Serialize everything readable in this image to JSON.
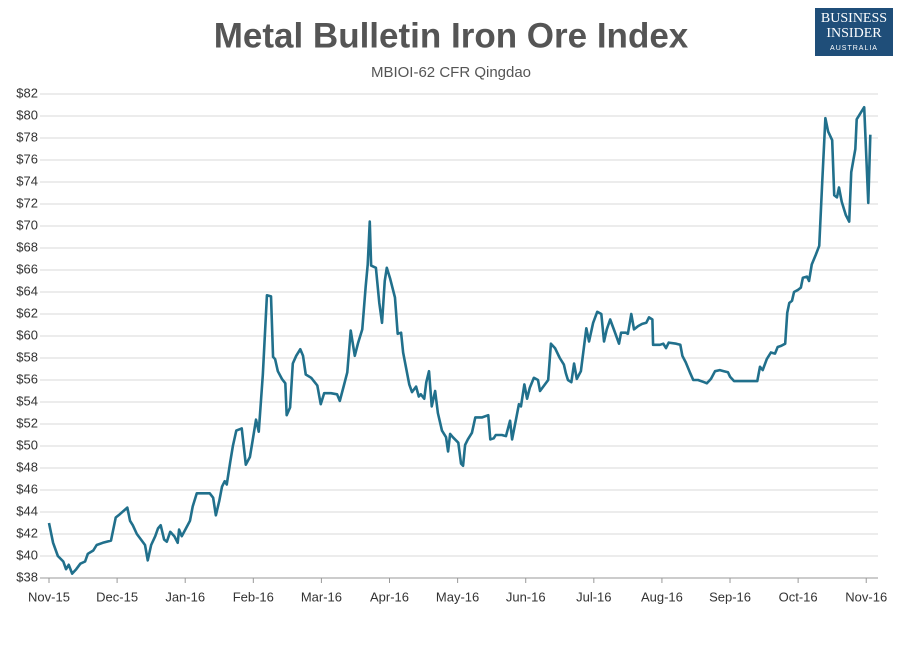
{
  "logo": {
    "line1": "BUSINESS",
    "line2": "INSIDER",
    "line3": "AUSTRALIA"
  },
  "chart_data": {
    "type": "line",
    "title": "Metal Bulletin Iron Ore Index",
    "subtitle": "MBIOI-62 CFR Qingdao",
    "color": "#21708c",
    "grid": true,
    "xlim": [
      0,
      12.07
    ],
    "xticks": [
      {
        "value": 0,
        "label": "Nov-15"
      },
      {
        "value": 1,
        "label": "Dec-15"
      },
      {
        "value": 2,
        "label": "Jan-16"
      },
      {
        "value": 3,
        "label": "Feb-16"
      },
      {
        "value": 4,
        "label": "Mar-16"
      },
      {
        "value": 5,
        "label": "Apr-16"
      },
      {
        "value": 6,
        "label": "May-16"
      },
      {
        "value": 7,
        "label": "Jun-16"
      },
      {
        "value": 8,
        "label": "Jul-16"
      },
      {
        "value": 9,
        "label": "Aug-16"
      },
      {
        "value": 10,
        "label": "Sep-16"
      },
      {
        "value": 11,
        "label": "Oct-16"
      },
      {
        "value": 12,
        "label": "Nov-16"
      }
    ],
    "ylim": [
      38,
      82
    ],
    "yticks": [
      {
        "value": 38,
        "label": "$38"
      },
      {
        "value": 40,
        "label": "$40"
      },
      {
        "value": 42,
        "label": "$42"
      },
      {
        "value": 44,
        "label": "$44"
      },
      {
        "value": 46,
        "label": "$46"
      },
      {
        "value": 48,
        "label": "$48"
      },
      {
        "value": 50,
        "label": "$50"
      },
      {
        "value": 52,
        "label": "$52"
      },
      {
        "value": 54,
        "label": "$54"
      },
      {
        "value": 56,
        "label": "$56"
      },
      {
        "value": 58,
        "label": "$58"
      },
      {
        "value": 60,
        "label": "$60"
      },
      {
        "value": 62,
        "label": "$62"
      },
      {
        "value": 64,
        "label": "$64"
      },
      {
        "value": 66,
        "label": "$66"
      },
      {
        "value": 68,
        "label": "$68"
      },
      {
        "value": 70,
        "label": "$70"
      },
      {
        "value": 72,
        "label": "$72"
      },
      {
        "value": 74,
        "label": "$74"
      },
      {
        "value": 76,
        "label": "$76"
      },
      {
        "value": 78,
        "label": "$78"
      },
      {
        "value": 80,
        "label": "$80"
      },
      {
        "value": 82,
        "label": "$82"
      }
    ],
    "x": [
      0,
      0.06,
      0.13,
      0.21,
      0.25,
      0.29,
      0.34,
      0.4,
      0.46,
      0.53,
      0.57,
      0.65,
      0.7,
      0.79,
      0.91,
      0.98,
      1.04,
      1.15,
      1.19,
      1.23,
      1.29,
      1.35,
      1.41,
      1.45,
      1.5,
      1.56,
      1.6,
      1.64,
      1.69,
      1.73,
      1.78,
      1.84,
      1.89,
      1.91,
      1.95,
      2.01,
      2.07,
      2.11,
      2.17,
      2.28,
      2.36,
      2.41,
      2.45,
      2.5,
      2.54,
      2.58,
      2.61,
      2.66,
      2.7,
      2.75,
      2.83,
      2.89,
      2.95,
      2.99,
      3.04,
      3.08,
      3.14,
      3.2,
      3.26,
      3.29,
      3.32,
      3.36,
      3.42,
      3.47,
      3.49,
      3.54,
      3.58,
      3.63,
      3.69,
      3.73,
      3.77,
      3.85,
      3.94,
      3.99,
      4.04,
      4.14,
      4.23,
      4.27,
      4.33,
      4.38,
      4.43,
      4.49,
      4.54,
      4.6,
      4.65,
      4.68,
      4.71,
      4.73,
      4.8,
      4.85,
      4.89,
      4.93,
      4.96,
      5.01,
      5.08,
      5.12,
      5.17,
      5.2,
      5.24,
      5.29,
      5.33,
      5.39,
      5.43,
      5.46,
      5.51,
      5.54,
      5.58,
      5.62,
      5.67,
      5.71,
      5.77,
      5.83,
      5.86,
      5.89,
      5.93,
      6.01,
      6.05,
      6.08,
      6.11,
      6.15,
      6.21,
      6.26,
      6.36,
      6.45,
      6.48,
      6.53,
      6.56,
      6.65,
      6.71,
      6.77,
      6.8,
      6.86,
      6.9,
      6.93,
      6.98,
      7.02,
      7.06,
      7.12,
      7.18,
      7.21,
      7.27,
      7.33,
      7.37,
      7.43,
      7.5,
      7.56,
      7.59,
      7.62,
      7.67,
      7.71,
      7.75,
      7.81,
      7.89,
      7.93,
      7.99,
      8.05,
      8.11,
      8.15,
      8.19,
      8.24,
      8.3,
      8.37,
      8.4,
      8.47,
      8.5,
      8.55,
      8.59,
      8.65,
      8.71,
      8.77,
      8.81,
      8.86,
      8.87,
      8.97,
      9.02,
      9.06,
      9.1,
      9.21,
      9.27,
      9.3,
      9.35,
      9.41,
      9.46,
      9.53,
      9.62,
      9.66,
      9.72,
      9.78,
      9.85,
      9.91,
      9.97,
      10.0,
      10.06,
      10.15,
      10.23,
      10.32,
      10.4,
      10.44,
      10.48,
      10.54,
      10.6,
      10.66,
      10.7,
      10.75,
      10.81,
      10.84,
      10.87,
      10.91,
      10.94,
      11.0,
      11.04,
      11.07,
      11.13,
      11.16,
      11.2,
      11.26,
      11.31,
      11.35,
      11.4,
      11.44,
      11.5,
      11.53,
      11.57,
      11.6,
      11.64,
      11.7,
      11.75,
      11.78,
      11.84,
      11.86,
      11.92,
      11.97,
      12.03,
      12.06
    ],
    "values": [
      43,
      41.2,
      40,
      39.5,
      38.8,
      39.2,
      38.4,
      38.8,
      39.3,
      39.5,
      40.2,
      40.5,
      41,
      41.2,
      41.4,
      43.5,
      43.8,
      44.4,
      43.2,
      42.8,
      42,
      41.5,
      41,
      39.6,
      41,
      41.8,
      42.5,
      42.8,
      41.5,
      41.3,
      42.2,
      41.8,
      41.2,
      42.4,
      41.8,
      42.5,
      43.2,
      44.5,
      45.7,
      45.7,
      45.7,
      45.3,
      43.7,
      45,
      46.3,
      46.8,
      46.5,
      48.5,
      50,
      51.4,
      51.6,
      48.3,
      49,
      50.5,
      52.4,
      51.3,
      56.5,
      63.7,
      63.6,
      58.1,
      57.9,
      56.8,
      56.1,
      55.7,
      52.8,
      53.5,
      57.5,
      58.2,
      58.8,
      58.2,
      56.5,
      56.2,
      55.5,
      53.8,
      54.8,
      54.8,
      54.7,
      54.1,
      55.5,
      56.7,
      60.5,
      58.2,
      59.4,
      60.6,
      64.5,
      66.5,
      70.4,
      66.4,
      66.2,
      63,
      61.2,
      65,
      66.2,
      65.2,
      63.5,
      60.2,
      60.3,
      58.5,
      57.2,
      55.6,
      54.9,
      55.4,
      54.5,
      54.7,
      54.3,
      55.8,
      56.8,
      53.6,
      55,
      53,
      51.4,
      50.8,
      49.5,
      51.1,
      50.8,
      50.3,
      48.4,
      48.2,
      50.1,
      50.6,
      51.2,
      52.6,
      52.6,
      52.8,
      50.6,
      50.7,
      51,
      51,
      50.9,
      52.3,
      50.6,
      52.5,
      53.8,
      53.6,
      55.6,
      54.3,
      55.3,
      56.2,
      56,
      55,
      55.5,
      56,
      59.3,
      58.9,
      58,
      57.4,
      56.6,
      56,
      55.8,
      57.5,
      56.1,
      56.8,
      60.7,
      59.5,
      61.2,
      62.2,
      62,
      59.5,
      60.6,
      61.5,
      60.5,
      59.3,
      60.3,
      60.3,
      60.2,
      62,
      60.6,
      60.9,
      61.1,
      61.2,
      61.7,
      61.5,
      59.2,
      59.2,
      59.3,
      58.9,
      59.4,
      59.3,
      59.2,
      58.2,
      57.6,
      56.7,
      56,
      56,
      55.8,
      55.7,
      56.1,
      56.8,
      56.9,
      56.8,
      56.7,
      56.3,
      55.9,
      55.9,
      55.9,
      55.9,
      55.9,
      57.2,
      56.9,
      57.9,
      58.5,
      58.4,
      59,
      59.1,
      59.3,
      62.1,
      63,
      63.2,
      64,
      64.2,
      64.4,
      65.3,
      65.4,
      65,
      66.5,
      67.4,
      68.2,
      73.5,
      79.8,
      78.6,
      77.8,
      72.8,
      72.6,
      73.5,
      72.2,
      71,
      70.4,
      74.9,
      77,
      79.7,
      80.3,
      80.8,
      72.1,
      78.3
    ]
  }
}
